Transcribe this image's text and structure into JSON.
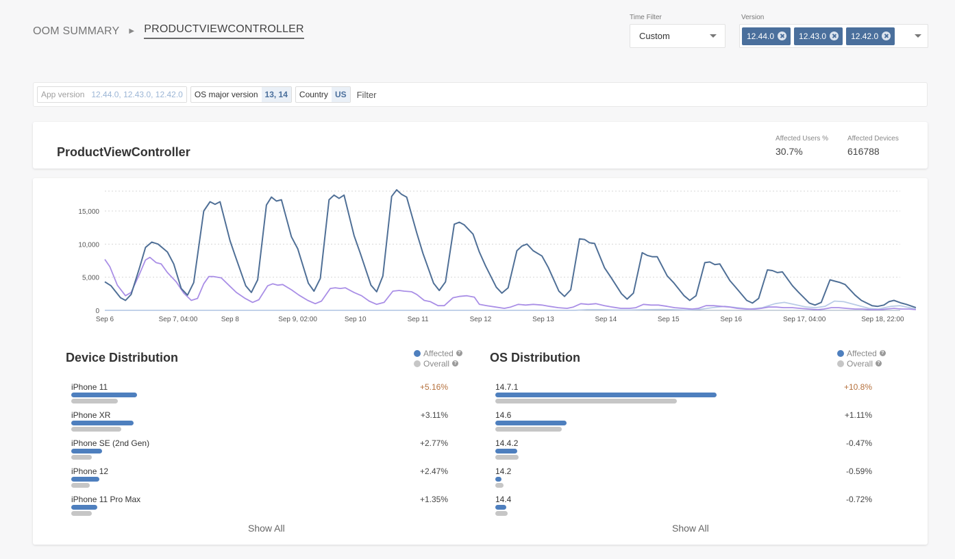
{
  "breadcrumb": {
    "root": "OOM SUMMARY",
    "current": "PRODUCTVIEWCONTROLLER"
  },
  "time_filter": {
    "label": "Time Filter",
    "value": "Custom"
  },
  "version_filter": {
    "label": "Version",
    "chips": [
      "12.44.0",
      "12.43.0",
      "12.42.0"
    ]
  },
  "filter_bar": {
    "tags": [
      {
        "key": "App version",
        "value": "12.44.0, 12.43.0, 12.42.0",
        "dim": true
      },
      {
        "key": "OS major version",
        "value": "13, 14",
        "dim": false
      },
      {
        "key": "Country",
        "value": "US",
        "dim": false
      }
    ],
    "placeholder": "Filter"
  },
  "summary": {
    "title": "ProductViewController",
    "affected_users_label": "Affected Users %",
    "affected_users_value": "30.7%",
    "affected_devices_label": "Affected Devices",
    "affected_devices_value": "616788"
  },
  "colors": {
    "dark_series": "#4f6f96",
    "purple_series": "#a98ee6",
    "light_series": "#b9cbe6",
    "affected": "#4e7fbe",
    "overall": "#c6c6c6",
    "positive_delta": "#b5703c"
  },
  "chart_data": {
    "type": "line",
    "ylim": [
      0,
      18000
    ],
    "yticks": [
      0,
      5000,
      10000,
      15000
    ],
    "ytick_labels": [
      "0",
      "5,000",
      "10,000",
      "15,000"
    ],
    "x_range_days": [
      0,
      12.7
    ],
    "xtick_positions": [
      0,
      1.17,
      2,
      3.08,
      4,
      5,
      6,
      7,
      8,
      9,
      10,
      11.17,
      12.42
    ],
    "xtick_labels": [
      "Sep 6",
      "Sep 7, 04:00",
      "Sep 8",
      "Sep 9, 02:00",
      "Sep 10",
      "Sep 11",
      "Sep 12",
      "Sep 13",
      "Sep 14",
      "Sep 15",
      "Sep 16",
      "Sep 17, 04:00",
      "Sep 18, 22:00"
    ],
    "grid": true,
    "legend": "none",
    "series": [
      {
        "color_key": "dark_series",
        "points": [
          [
            0,
            4300
          ],
          [
            0.1,
            3700
          ],
          [
            0.25,
            1900
          ],
          [
            0.33,
            1500
          ],
          [
            0.42,
            2400
          ],
          [
            0.55,
            6300
          ],
          [
            0.65,
            9500
          ],
          [
            0.75,
            10300
          ],
          [
            0.85,
            10000
          ],
          [
            1.0,
            8800
          ],
          [
            1.1,
            7000
          ],
          [
            1.22,
            3300
          ],
          [
            1.32,
            2300
          ],
          [
            1.42,
            4200
          ],
          [
            1.58,
            15000
          ],
          [
            1.68,
            16400
          ],
          [
            1.76,
            16000
          ],
          [
            1.84,
            16400
          ],
          [
            2.0,
            10500
          ],
          [
            2.08,
            8300
          ],
          [
            2.25,
            3700
          ],
          [
            2.34,
            2700
          ],
          [
            2.44,
            4600
          ],
          [
            2.58,
            15900
          ],
          [
            2.66,
            17100
          ],
          [
            2.74,
            16500
          ],
          [
            2.82,
            16700
          ],
          [
            2.98,
            11100
          ],
          [
            3.08,
            9300
          ],
          [
            3.25,
            4100
          ],
          [
            3.34,
            2900
          ],
          [
            3.44,
            4800
          ],
          [
            3.58,
            16700
          ],
          [
            3.66,
            17400
          ],
          [
            3.74,
            16900
          ],
          [
            3.82,
            17400
          ],
          [
            3.98,
            11300
          ],
          [
            4.08,
            8600
          ],
          [
            4.25,
            3800
          ],
          [
            4.34,
            2800
          ],
          [
            4.44,
            5200
          ],
          [
            4.58,
            17200
          ],
          [
            4.66,
            18200
          ],
          [
            4.74,
            17500
          ],
          [
            4.82,
            17100
          ],
          [
            4.98,
            11700
          ],
          [
            5.08,
            8600
          ],
          [
            5.25,
            4100
          ],
          [
            5.34,
            3000
          ],
          [
            5.44,
            4300
          ],
          [
            5.58,
            13000
          ],
          [
            5.66,
            13300
          ],
          [
            5.74,
            12900
          ],
          [
            5.88,
            11500
          ],
          [
            5.98,
            8800
          ],
          [
            6.08,
            6700
          ],
          [
            6.25,
            3500
          ],
          [
            6.34,
            2600
          ],
          [
            6.44,
            3400
          ],
          [
            6.58,
            9000
          ],
          [
            6.66,
            9700
          ],
          [
            6.74,
            10000
          ],
          [
            6.84,
            9000
          ],
          [
            6.98,
            8200
          ],
          [
            7.08,
            6500
          ],
          [
            7.25,
            2900
          ],
          [
            7.34,
            2100
          ],
          [
            7.44,
            3100
          ],
          [
            7.58,
            10800
          ],
          [
            7.66,
            10700
          ],
          [
            7.74,
            10200
          ],
          [
            7.82,
            10100
          ],
          [
            7.98,
            6400
          ],
          [
            8.08,
            5000
          ],
          [
            8.25,
            2500
          ],
          [
            8.34,
            1700
          ],
          [
            8.44,
            2600
          ],
          [
            8.58,
            8700
          ],
          [
            8.66,
            8300
          ],
          [
            8.74,
            8100
          ],
          [
            8.82,
            8100
          ],
          [
            8.98,
            5200
          ],
          [
            9.08,
            4200
          ],
          [
            9.25,
            2200
          ],
          [
            9.34,
            1500
          ],
          [
            9.44,
            2200
          ],
          [
            9.58,
            7200
          ],
          [
            9.66,
            7300
          ],
          [
            9.74,
            6900
          ],
          [
            9.82,
            7000
          ],
          [
            9.98,
            4500
          ],
          [
            10.08,
            3400
          ],
          [
            10.25,
            1500
          ],
          [
            10.34,
            1100
          ],
          [
            10.44,
            1800
          ],
          [
            10.58,
            6100
          ],
          [
            10.66,
            6000
          ],
          [
            10.74,
            5700
          ],
          [
            10.82,
            5800
          ],
          [
            10.98,
            3700
          ],
          [
            11.08,
            2700
          ],
          [
            11.25,
            1100
          ],
          [
            11.34,
            800
          ],
          [
            11.44,
            1200
          ],
          [
            11.58,
            4600
          ],
          [
            11.66,
            4400
          ],
          [
            11.74,
            4200
          ],
          [
            11.82,
            3900
          ],
          [
            11.98,
            2300
          ],
          [
            12.08,
            1500
          ],
          [
            12.25,
            700
          ],
          [
            12.34,
            600
          ],
          [
            12.44,
            800
          ],
          [
            12.52,
            1300
          ],
          [
            12.6,
            1500
          ],
          [
            12.66,
            1300
          ],
          [
            12.72,
            1100
          ],
          [
            12.8,
            900
          ],
          [
            12.95,
            400
          ]
        ]
      },
      {
        "color_key": "purple_series",
        "points": [
          [
            0,
            7700
          ],
          [
            0.08,
            6600
          ],
          [
            0.2,
            3800
          ],
          [
            0.33,
            2200
          ],
          [
            0.42,
            2700
          ],
          [
            0.55,
            5400
          ],
          [
            0.65,
            7600
          ],
          [
            0.72,
            8000
          ],
          [
            0.82,
            7200
          ],
          [
            0.9,
            7000
          ],
          [
            1.0,
            5700
          ],
          [
            1.14,
            4300
          ],
          [
            1.26,
            2600
          ],
          [
            1.38,
            1500
          ],
          [
            1.48,
            1800
          ],
          [
            1.58,
            4000
          ],
          [
            1.66,
            5100
          ],
          [
            1.74,
            5100
          ],
          [
            1.86,
            4900
          ],
          [
            1.98,
            3800
          ],
          [
            2.1,
            2700
          ],
          [
            2.24,
            1800
          ],
          [
            2.36,
            1200
          ],
          [
            2.46,
            1600
          ],
          [
            2.6,
            3700
          ],
          [
            2.68,
            4000
          ],
          [
            2.76,
            3800
          ],
          [
            2.84,
            3900
          ],
          [
            2.98,
            3100
          ],
          [
            3.1,
            2300
          ],
          [
            3.24,
            1500
          ],
          [
            3.36,
            1000
          ],
          [
            3.46,
            1400
          ],
          [
            3.6,
            3300
          ],
          [
            3.68,
            3400
          ],
          [
            3.76,
            3300
          ],
          [
            3.84,
            3400
          ],
          [
            3.98,
            2700
          ],
          [
            4.1,
            2200
          ],
          [
            4.22,
            1400
          ],
          [
            4.34,
            900
          ],
          [
            4.46,
            1200
          ],
          [
            4.6,
            2900
          ],
          [
            4.7,
            3000
          ],
          [
            4.78,
            2900
          ],
          [
            4.9,
            2800
          ],
          [
            4.98,
            2400
          ],
          [
            5.1,
            1500
          ],
          [
            5.2,
            1300
          ],
          [
            5.32,
            700
          ],
          [
            5.42,
            700
          ],
          [
            5.56,
            1900
          ],
          [
            5.66,
            2100
          ],
          [
            5.78,
            2200
          ],
          [
            5.9,
            2000
          ],
          [
            5.98,
            900
          ],
          [
            6.1,
            700
          ],
          [
            6.24,
            500
          ],
          [
            6.38,
            300
          ],
          [
            6.48,
            500
          ],
          [
            6.6,
            900
          ],
          [
            6.72,
            800
          ],
          [
            6.84,
            900
          ],
          [
            6.98,
            800
          ],
          [
            7.1,
            600
          ],
          [
            7.24,
            400
          ],
          [
            7.38,
            300
          ],
          [
            7.48,
            500
          ],
          [
            7.6,
            1000
          ],
          [
            7.72,
            900
          ],
          [
            7.84,
            1000
          ],
          [
            7.98,
            700
          ],
          [
            8.1,
            500
          ],
          [
            8.24,
            300
          ],
          [
            8.38,
            300
          ],
          [
            8.48,
            400
          ],
          [
            8.6,
            900
          ],
          [
            8.72,
            800
          ],
          [
            8.84,
            800
          ],
          [
            8.98,
            600
          ],
          [
            9.1,
            400
          ],
          [
            9.24,
            300
          ],
          [
            9.38,
            200
          ],
          [
            9.48,
            300
          ],
          [
            9.6,
            700
          ],
          [
            9.72,
            700
          ],
          [
            9.84,
            600
          ],
          [
            9.98,
            500
          ],
          [
            10.1,
            300
          ],
          [
            10.24,
            200
          ],
          [
            10.38,
            200
          ],
          [
            10.48,
            300
          ],
          [
            10.6,
            500
          ],
          [
            10.72,
            500
          ],
          [
            10.84,
            400
          ],
          [
            10.98,
            400
          ],
          [
            11.1,
            300
          ],
          [
            11.24,
            200
          ],
          [
            11.38,
            100
          ],
          [
            11.48,
            200
          ],
          [
            11.6,
            400
          ],
          [
            11.72,
            400
          ],
          [
            11.84,
            300
          ],
          [
            11.98,
            200
          ],
          [
            12.1,
            200
          ],
          [
            12.24,
            100
          ],
          [
            12.38,
            100
          ],
          [
            12.48,
            200
          ],
          [
            12.6,
            300
          ],
          [
            12.72,
            200
          ],
          [
            12.84,
            200
          ],
          [
            12.95,
            100
          ]
        ]
      },
      {
        "color_key": "light_series",
        "points": [
          [
            0,
            0
          ],
          [
            2,
            0
          ],
          [
            4,
            0
          ],
          [
            6,
            0
          ],
          [
            7.5,
            0
          ],
          [
            7.7,
            100
          ],
          [
            7.9,
            100
          ],
          [
            8.1,
            50
          ],
          [
            8.4,
            50
          ],
          [
            8.6,
            100
          ],
          [
            8.9,
            150
          ],
          [
            9.1,
            100
          ],
          [
            9.3,
            50
          ],
          [
            9.5,
            150
          ],
          [
            9.7,
            400
          ],
          [
            9.9,
            600
          ],
          [
            10.1,
            400
          ],
          [
            10.3,
            200
          ],
          [
            10.5,
            400
          ],
          [
            10.7,
            1000
          ],
          [
            10.85,
            1200
          ],
          [
            11.0,
            900
          ],
          [
            11.2,
            500
          ],
          [
            11.35,
            400
          ],
          [
            11.5,
            600
          ],
          [
            11.65,
            1400
          ],
          [
            11.8,
            1300
          ],
          [
            12.0,
            800
          ],
          [
            12.2,
            300
          ],
          [
            12.35,
            200
          ],
          [
            12.55,
            600
          ],
          [
            12.7,
            700
          ],
          [
            12.85,
            400
          ],
          [
            12.95,
            200
          ]
        ]
      }
    ]
  },
  "device_distribution": {
    "title": "Device Distribution",
    "legend_affected": "Affected",
    "legend_overall": "Overall",
    "show_all": "Show All",
    "rows": [
      {
        "label": "iPhone 11",
        "affected": 0.96,
        "overall": 0.68,
        "delta": "+5.16%",
        "highlight": true
      },
      {
        "label": "iPhone XR",
        "affected": 0.91,
        "overall": 0.73,
        "delta": "+3.11%",
        "highlight": false
      },
      {
        "label": "iPhone SE (2nd Gen)",
        "affected": 0.45,
        "overall": 0.3,
        "delta": "+2.77%",
        "highlight": false
      },
      {
        "label": "iPhone 12",
        "affected": 0.41,
        "overall": 0.27,
        "delta": "+2.47%",
        "highlight": false
      },
      {
        "label": "iPhone 11 Pro Max",
        "affected": 0.38,
        "overall": 0.3,
        "delta": "+1.35%",
        "highlight": false
      }
    ]
  },
  "os_distribution": {
    "title": "OS Distribution",
    "legend_affected": "Affected",
    "legend_overall": "Overall",
    "show_all": "Show All",
    "rows": [
      {
        "label": "14.7.1",
        "affected": 0.7,
        "overall": 0.575,
        "delta": "+10.8%",
        "highlight": true
      },
      {
        "label": "14.6",
        "affected": 0.225,
        "overall": 0.21,
        "delta": "+1.11%",
        "highlight": false
      },
      {
        "label": "14.4.2",
        "affected": 0.07,
        "overall": 0.074,
        "delta": "-0.47%",
        "highlight": false
      },
      {
        "label": "14.2",
        "affected": 0.02,
        "overall": 0.025,
        "delta": "-0.59%",
        "highlight": false
      },
      {
        "label": "14.4",
        "affected": 0.035,
        "overall": 0.04,
        "delta": "-0.72%",
        "highlight": false
      }
    ]
  }
}
